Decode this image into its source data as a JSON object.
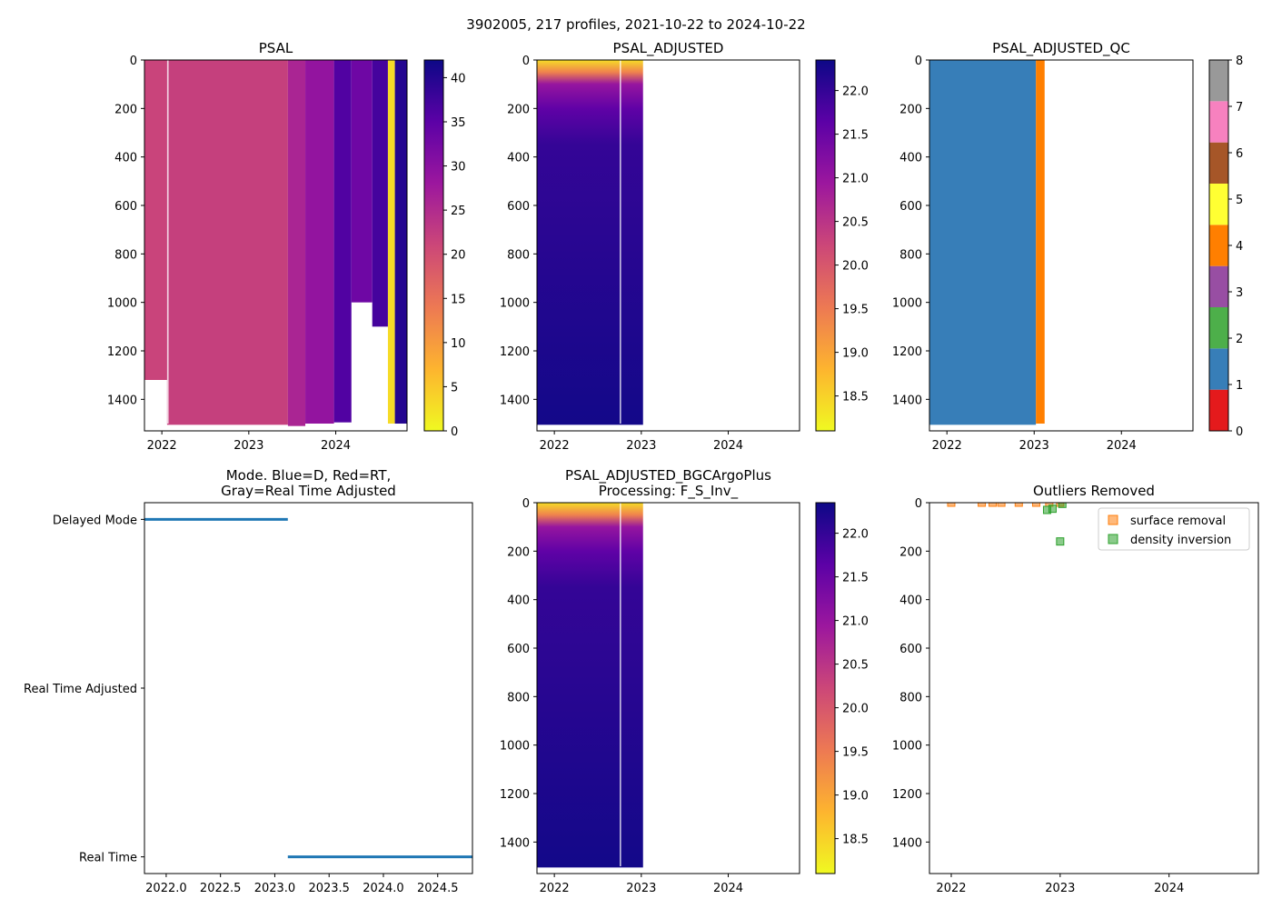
{
  "suptitle": "3902005, 217 profiles, 2021-10-22 to 2024-10-22",
  "colors": {
    "plasma_r_stops": [
      "#f0f921",
      "#fdb42f",
      "#ed7953",
      "#cc4778",
      "#9c179e",
      "#5c01a6",
      "#0d0887"
    ],
    "qc_classes": [
      "#e41a1c",
      "#377eb8",
      "#4daf4a",
      "#984ea3",
      "#ff7f00",
      "#ffff33",
      "#a65628",
      "#f781bf",
      "#999999"
    ],
    "mode_line": "#1f77b4",
    "surface_removal": "#ff7f0e",
    "density_inversion": "#2ca02c"
  },
  "chart_data": [
    {
      "id": "psal",
      "type": "heatmap",
      "title": "PSAL",
      "x_range": [
        2021.8,
        2024.82
      ],
      "x_ticks": [
        2022,
        2023,
        2024
      ],
      "x_tick_labels": [
        "2022",
        "2023",
        "2024"
      ],
      "y_range": [
        1530,
        0
      ],
      "y_ticks": [
        0,
        200,
        400,
        600,
        800,
        1000,
        1200,
        1400
      ],
      "y_tick_labels": [
        "0",
        "200",
        "400",
        "600",
        "800",
        "1000",
        "1200",
        "1400"
      ],
      "colorbar": {
        "range": [
          0,
          42
        ],
        "ticks": [
          0,
          5,
          10,
          15,
          20,
          25,
          30,
          35,
          40
        ],
        "tick_labels": [
          "0",
          "5",
          "10",
          "15",
          "20",
          "25",
          "30",
          "35",
          "40"
        ]
      },
      "regions": [
        {
          "x": [
            2021.8,
            2022.06
          ],
          "max_depth": 1320,
          "value": 21.5
        },
        {
          "x": [
            2022.06,
            2023.45
          ],
          "max_depth": 1505,
          "value": 22
        },
        {
          "x": [
            2023.45,
            2023.65
          ],
          "max_depth": 1510,
          "value": 26
        },
        {
          "x": [
            2023.65,
            2023.98
          ],
          "max_depth": 1500,
          "value": 29
        },
        {
          "x": [
            2023.98,
            2024.18
          ],
          "max_depth": 1495,
          "value": 36
        },
        {
          "x": [
            2024.18,
            2024.42
          ],
          "max_depth": 1000,
          "value": 33
        },
        {
          "x": [
            2024.42,
            2024.6
          ],
          "max_depth": 1100,
          "value": 37
        },
        {
          "x": [
            2024.6,
            2024.68
          ],
          "max_depth": 1500,
          "value": 3
        },
        {
          "x": [
            2024.68,
            2024.82
          ],
          "max_depth": 1500,
          "value": 40
        }
      ]
    },
    {
      "id": "psal_adjusted",
      "type": "heatmap",
      "title": "PSAL_ADJUSTED",
      "x_range": [
        2021.8,
        2024.82
      ],
      "x_ticks": [
        2022,
        2023,
        2024
      ],
      "x_tick_labels": [
        "2022",
        "2023",
        "2024"
      ],
      "y_range": [
        1530,
        0
      ],
      "y_ticks": [
        0,
        200,
        400,
        600,
        800,
        1000,
        1200,
        1400
      ],
      "y_tick_labels": [
        "0",
        "200",
        "400",
        "600",
        "800",
        "1000",
        "1200",
        "1400"
      ],
      "colorbar": {
        "range": [
          18.1,
          22.35
        ],
        "ticks": [
          18.5,
          19.0,
          19.5,
          20.0,
          20.5,
          21.0,
          21.5,
          22.0
        ],
        "tick_labels": [
          "18.5",
          "19.0",
          "19.5",
          "20.0",
          "20.5",
          "21.0",
          "21.5",
          "22.0"
        ]
      },
      "data_x_range": [
        2021.8,
        2023.02
      ],
      "max_depth": 1505,
      "depth_values": [
        [
          0,
          18.4
        ],
        [
          50,
          19.4
        ],
        [
          100,
          21.0
        ],
        [
          200,
          21.6
        ],
        [
          350,
          22.0
        ],
        [
          1530,
          22.3
        ]
      ]
    },
    {
      "id": "psal_adjusted_qc",
      "type": "heatmap",
      "title": "PSAL_ADJUSTED_QC",
      "x_range": [
        2021.8,
        2024.82
      ],
      "x_ticks": [
        2022,
        2023,
        2024
      ],
      "x_tick_labels": [
        "2022",
        "2023",
        "2024"
      ],
      "y_range": [
        1530,
        0
      ],
      "y_ticks": [
        0,
        200,
        400,
        600,
        800,
        1000,
        1200,
        1400
      ],
      "y_tick_labels": [
        "0",
        "200",
        "400",
        "600",
        "800",
        "1000",
        "1200",
        "1400"
      ],
      "colorbar": {
        "range": [
          0,
          8
        ],
        "ticks": [
          0,
          1,
          2,
          3,
          4,
          5,
          6,
          7,
          8
        ],
        "tick_labels": [
          "0",
          "1",
          "2",
          "3",
          "4",
          "5",
          "6",
          "7",
          "8"
        ]
      },
      "regions": [
        {
          "x": [
            2021.8,
            2023.02
          ],
          "max_depth": 1505,
          "qc": 1
        },
        {
          "x": [
            2023.02,
            2023.12
          ],
          "max_depth": 1500,
          "qc": 4
        }
      ]
    },
    {
      "id": "mode",
      "type": "scatter",
      "title": "Mode. Blue=D, Red=RT,\nGray=Real Time Adjusted",
      "x_range": [
        2021.8,
        2024.82
      ],
      "x_ticks": [
        2022.0,
        2022.5,
        2023.0,
        2023.5,
        2024.0,
        2024.5
      ],
      "x_tick_labels": [
        "2022.0",
        "2022.5",
        "2023.0",
        "2023.5",
        "2024.0",
        "2024.5"
      ],
      "y_categories": [
        "Delayed Mode",
        "Real Time Adjusted",
        "Real Time"
      ],
      "segments": [
        {
          "category": "Delayed Mode",
          "x": [
            2021.8,
            2023.12
          ]
        },
        {
          "category": "Real Time",
          "x": [
            2023.12,
            2024.82
          ]
        }
      ]
    },
    {
      "id": "bgc",
      "type": "heatmap",
      "title": "PSAL_ADJUSTED_BGCArgoPlus\nProcessing: F_S_Inv_",
      "x_range": [
        2021.8,
        2024.82
      ],
      "x_ticks": [
        2022,
        2023,
        2024
      ],
      "x_tick_labels": [
        "2022",
        "2023",
        "2024"
      ],
      "y_range": [
        1530,
        0
      ],
      "y_ticks": [
        0,
        200,
        400,
        600,
        800,
        1000,
        1200,
        1400
      ],
      "y_tick_labels": [
        "0",
        "200",
        "400",
        "600",
        "800",
        "1000",
        "1200",
        "1400"
      ],
      "colorbar": {
        "range": [
          18.1,
          22.35
        ],
        "ticks": [
          18.5,
          19.0,
          19.5,
          20.0,
          20.5,
          21.0,
          21.5,
          22.0
        ],
        "tick_labels": [
          "18.5",
          "19.0",
          "19.5",
          "20.0",
          "20.5",
          "21.0",
          "21.5",
          "22.0"
        ]
      },
      "data_x_range": [
        2021.8,
        2023.02
      ],
      "max_depth": 1505,
      "depth_values": [
        [
          0,
          18.4
        ],
        [
          50,
          19.4
        ],
        [
          100,
          21.0
        ],
        [
          200,
          21.6
        ],
        [
          350,
          22.0
        ],
        [
          1530,
          22.3
        ]
      ]
    },
    {
      "id": "outliers",
      "type": "scatter",
      "title": "Outliers Removed",
      "x_range": [
        2021.8,
        2024.82
      ],
      "x_ticks": [
        2022,
        2023,
        2024
      ],
      "x_tick_labels": [
        "2022",
        "2023",
        "2024"
      ],
      "y_range": [
        1530,
        0
      ],
      "y_ticks": [
        0,
        200,
        400,
        600,
        800,
        1000,
        1200,
        1400
      ],
      "y_tick_labels": [
        "0",
        "200",
        "400",
        "600",
        "800",
        "1000",
        "1200",
        "1400"
      ],
      "legend": [
        "surface removal",
        "density inversion"
      ],
      "series": [
        {
          "name": "surface removal",
          "points": [
            [
              2022.0,
              0
            ],
            [
              2022.28,
              0
            ],
            [
              2022.38,
              0
            ],
            [
              2022.46,
              0
            ],
            [
              2022.62,
              0
            ],
            [
              2022.78,
              0
            ],
            [
              2022.9,
              0
            ],
            [
              2023.0,
              0
            ]
          ]
        },
        {
          "name": "density inversion",
          "points": [
            [
              2022.88,
              30
            ],
            [
              2022.93,
              25
            ],
            [
              2023.0,
              160
            ],
            [
              2023.02,
              5
            ]
          ]
        }
      ]
    }
  ]
}
